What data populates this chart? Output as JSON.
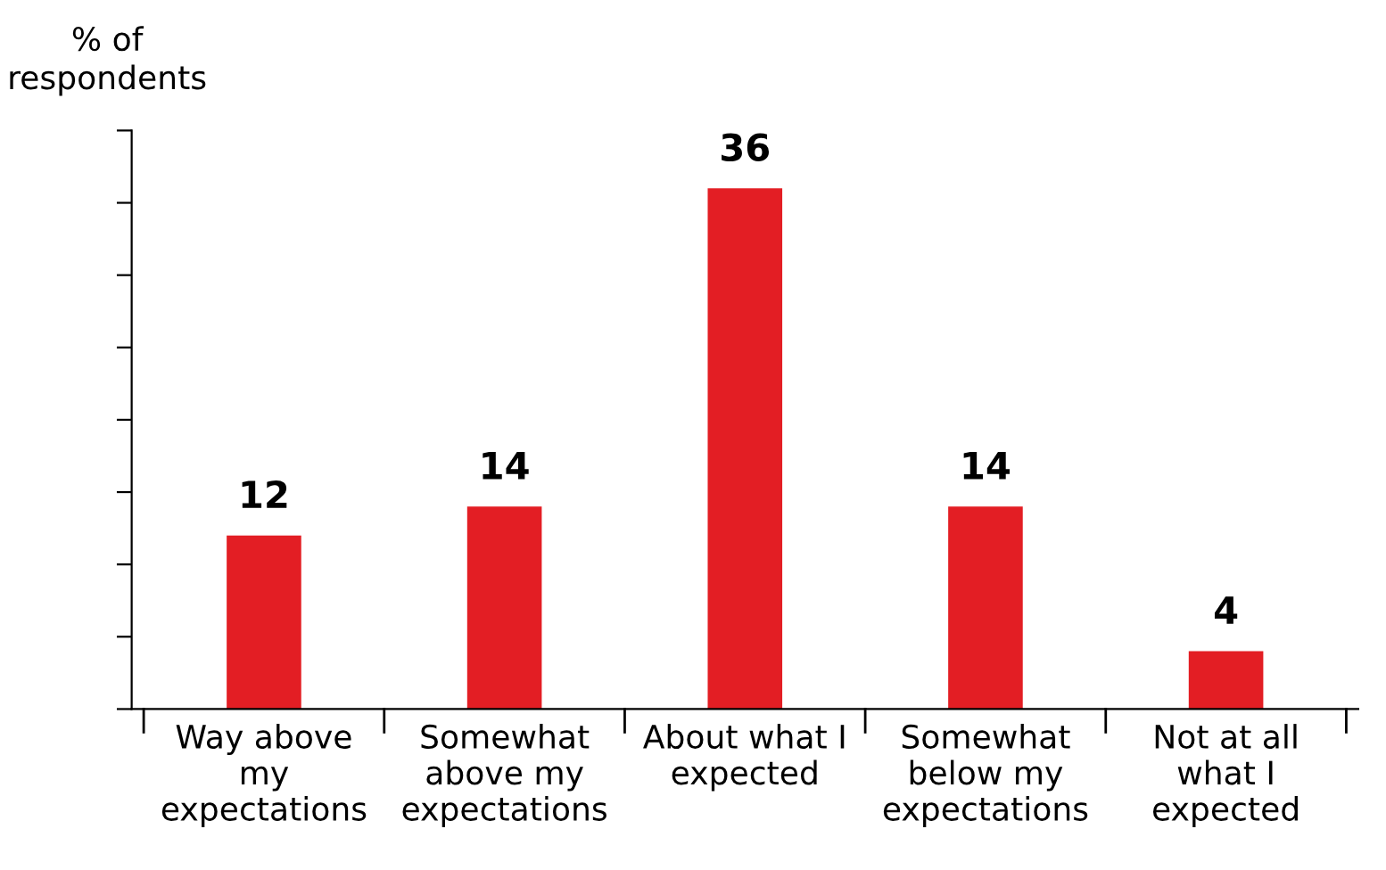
{
  "chart_data": {
    "type": "bar",
    "ylabel": "% of\nrespondents",
    "categories": [
      "Way above\nmy\nexpectations",
      "Somewhat\nabove my\nexpectations",
      "About what I\nexpected",
      "Somewhat\nbelow my\nexpectations",
      "Not at all\nwhat I\nexpected"
    ],
    "values": [
      12,
      14,
      36,
      14,
      4
    ],
    "color": "#e31e24",
    "data_labels": true,
    "ylim": [
      0,
      40
    ],
    "yticks": [
      {
        "value": 0,
        "label": null
      },
      {
        "value": 5,
        "label": null
      },
      {
        "value": 10,
        "label": null
      },
      {
        "value": 15,
        "label": null
      },
      {
        "value": 20,
        "label": null
      },
      {
        "value": 25,
        "label": null
      },
      {
        "value": 30,
        "label": null
      },
      {
        "value": 35,
        "label": null
      },
      {
        "value": 40,
        "label": null
      }
    ],
    "tick_labels": "x",
    "grid": false
  }
}
